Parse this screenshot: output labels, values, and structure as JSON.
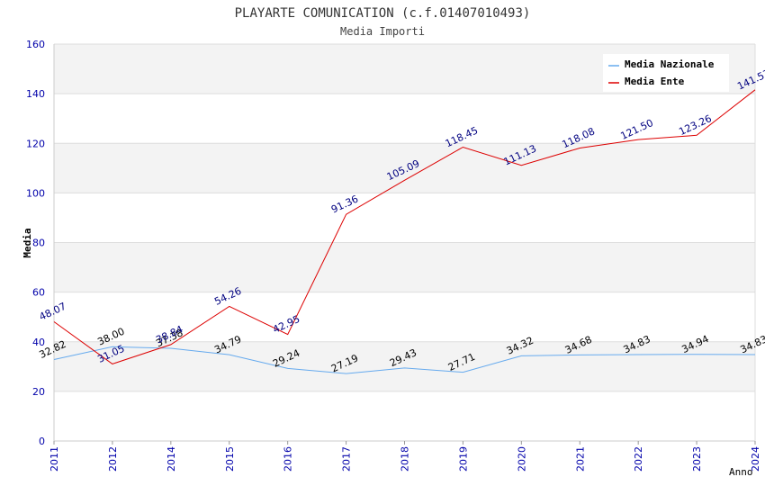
{
  "chart_data": {
    "type": "line",
    "title": "PLAYARTE COMUNICATION (c.f.01407010493)",
    "subtitle": "Media Importi",
    "xlabel": "Anno",
    "ylabel": "Media",
    "ylim": [
      0,
      160
    ],
    "yticks": [
      "0",
      "20",
      "40",
      "60",
      "80",
      "100",
      "120",
      "140",
      "160"
    ],
    "categories": [
      "2011",
      "2012",
      "2014",
      "2015",
      "2016",
      "2017",
      "2018",
      "2019",
      "2020",
      "2021",
      "2022",
      "2023",
      "2024"
    ],
    "grid": true,
    "legend_position": "top-right",
    "series": [
      {
        "name": "Media Nazionale",
        "color": "#66aaee",
        "label_color": "#000000",
        "values": [
          32.82,
          38.0,
          37.38,
          34.79,
          29.24,
          27.19,
          29.43,
          27.71,
          34.32,
          34.68,
          34.83,
          34.94,
          34.83
        ],
        "labels": [
          "32.82",
          "38.00",
          "37.38",
          "34.79",
          "29.24",
          "27.19",
          "29.43",
          "27.71",
          "34.32",
          "34.68",
          "34.83",
          "34.94",
          "34.83"
        ]
      },
      {
        "name": "Media Ente",
        "color": "#dd0000",
        "label_color": "#000080",
        "values": [
          48.07,
          31.05,
          38.84,
          54.26,
          42.95,
          91.36,
          105.09,
          118.45,
          111.13,
          118.08,
          121.5,
          123.26,
          141.57
        ],
        "labels": [
          "48.07",
          "31.05",
          "38.84",
          "54.26",
          "42.95",
          "91.36",
          "105.09",
          "118.45",
          "111.13",
          "118.08",
          "121.50",
          "123.26",
          "141.57"
        ]
      }
    ],
    "colors": {
      "band": "#f3f3f3",
      "grid": "#dddddd",
      "axis_tick_text": "#0000aa",
      "title_text": "#333333"
    }
  }
}
